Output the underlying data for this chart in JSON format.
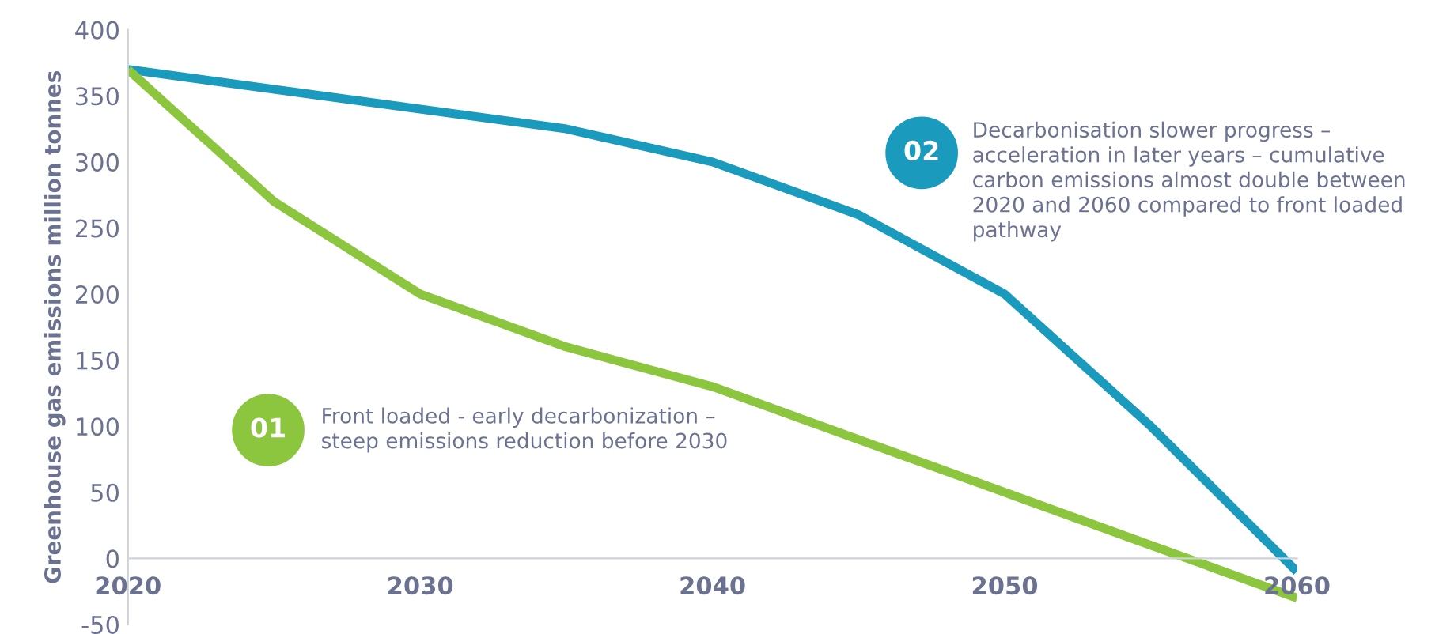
{
  "chart_data": {
    "type": "line",
    "ylabel": "Greenhouse gas emissions million tonnes",
    "x": [
      2020,
      2025,
      2030,
      2035,
      2040,
      2045,
      2050,
      2055,
      2060
    ],
    "series": [
      {
        "color": "#1a9bbd",
        "values": [
          370,
          355,
          340,
          325,
          300,
          260,
          200,
          100,
          -10
        ]
      },
      {
        "color": "#8cc63f",
        "values": [
          370,
          270,
          200,
          160,
          130,
          90,
          50,
          10,
          -30
        ]
      }
    ],
    "xlim": [
      2020,
      2060
    ],
    "xticks": [
      2020,
      2030,
      2040,
      2050,
      2060
    ],
    "ylim": [
      -50,
      400
    ],
    "yticks": [
      -50,
      0,
      50,
      100,
      150,
      200,
      250,
      300,
      350,
      400
    ],
    "grid": false,
    "marker": "none",
    "line_style": "solid",
    "annotations": [
      "01",
      "Front loaded - early decarbonization –\nsteep emissions reduction before 2030",
      "02",
      "Decarbonisation slower progress –\nacceleration in later years – cumulative\ncarbon emissions almost double between\n2020 and 2060 compared to front loaded\npathway"
    ]
  }
}
